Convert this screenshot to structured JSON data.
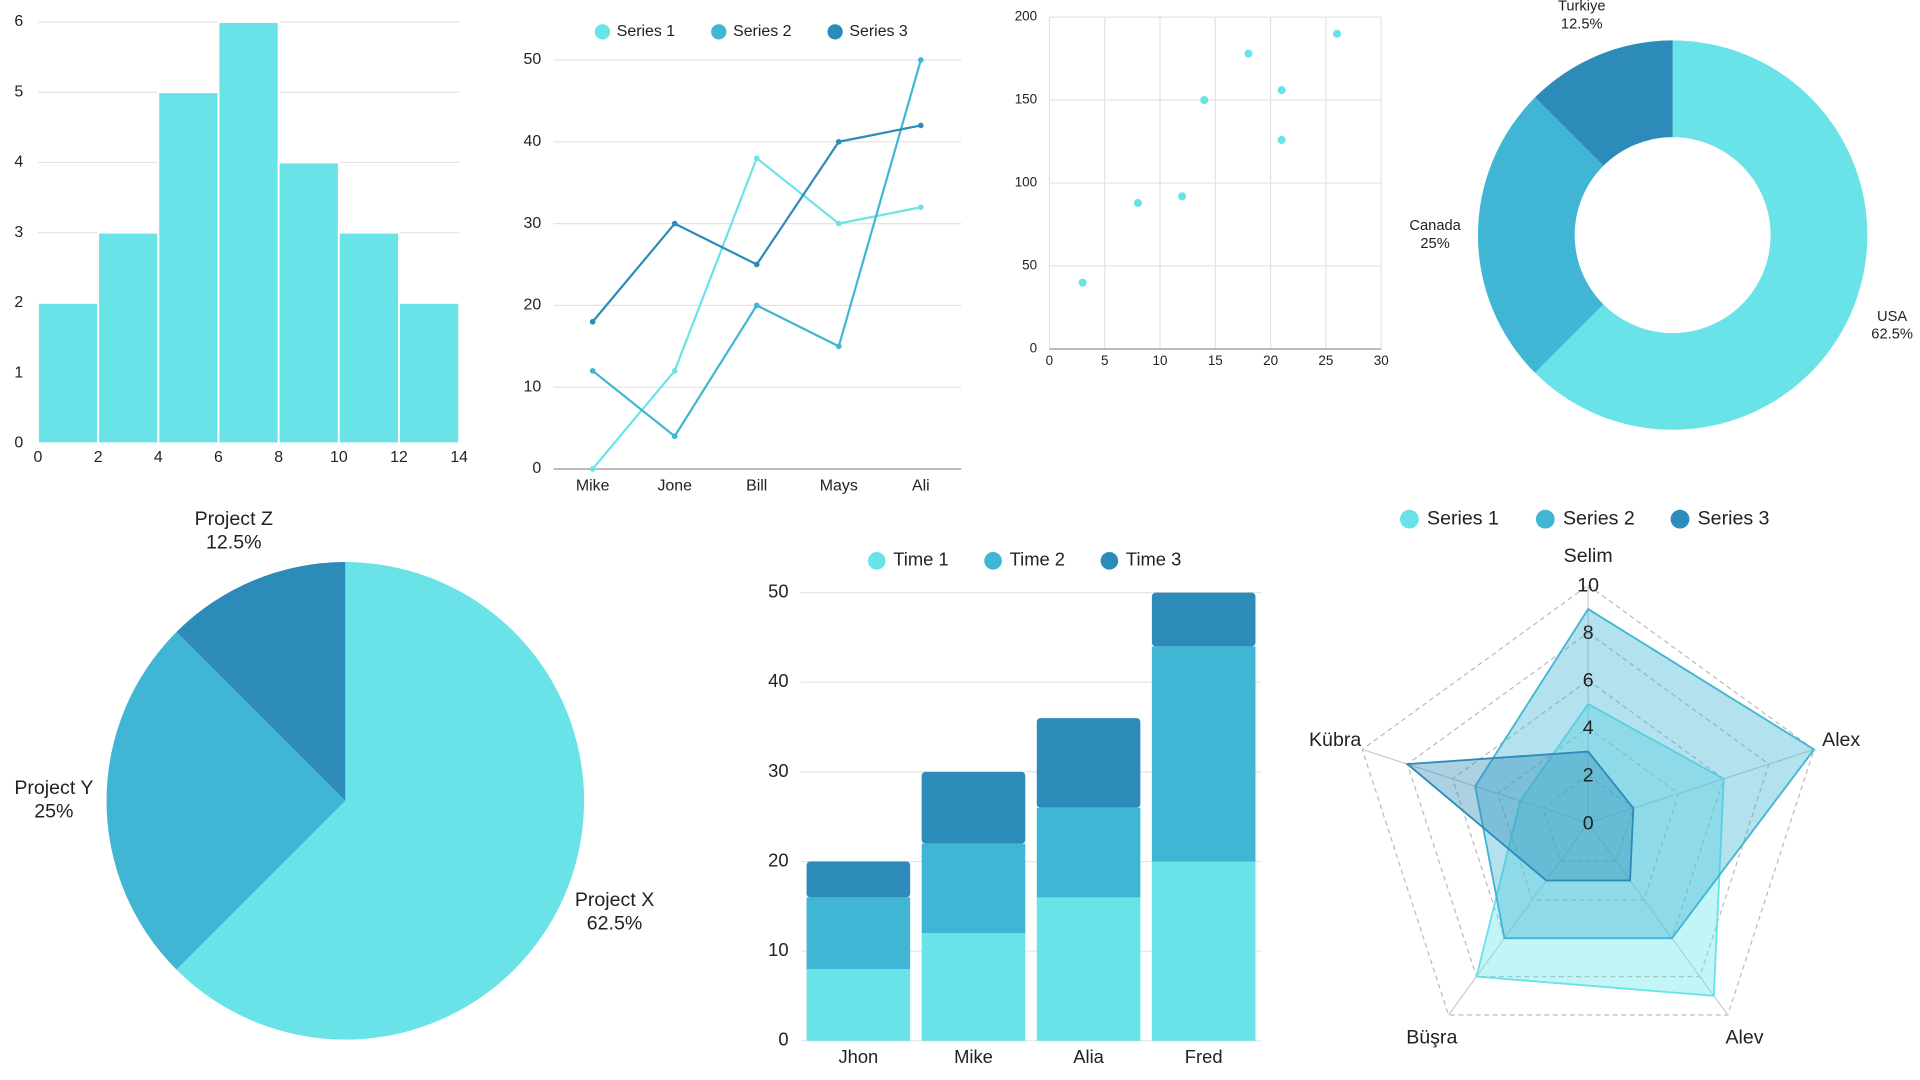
{
  "chart_data": [
    {
      "type": "histogram",
      "bins": [
        0,
        2,
        4,
        6,
        8,
        10,
        12,
        14
      ],
      "values": [
        2,
        3,
        5,
        6,
        4,
        3,
        2
      ],
      "color": "#6ae3e8",
      "xlim": [
        0,
        14
      ],
      "xticks": [
        0,
        2,
        4,
        6,
        8,
        10,
        12,
        14
      ],
      "ylim": [
        0,
        6
      ],
      "yticks": [
        0,
        1,
        2,
        3,
        4,
        5,
        6
      ],
      "grid": true
    },
    {
      "type": "line",
      "categories": [
        "Mike",
        "Jone",
        "Bill",
        "Mays",
        "Ali"
      ],
      "series": [
        {
          "name": "Series 1",
          "color": "#6ae3e8",
          "values": [
            0,
            12,
            38,
            30,
            32
          ]
        },
        {
          "name": "Series 2",
          "color": "#40b5d4",
          "values": [
            12,
            4,
            20,
            15,
            50
          ]
        },
        {
          "name": "Series 3",
          "color": "#2d8bba",
          "values": [
            18,
            30,
            25,
            40,
            42
          ]
        }
      ],
      "ylim": [
        0,
        50
      ],
      "yticks": [
        0,
        10,
        20,
        30,
        40,
        50
      ],
      "grid": true,
      "legend": "top"
    },
    {
      "type": "scatter",
      "x": [
        3,
        8,
        12,
        14,
        18,
        21,
        21,
        26
      ],
      "values": [
        40,
        88,
        92,
        150,
        178,
        156,
        126,
        190
      ],
      "color": "#6ae3e8",
      "xlim": [
        0,
        30
      ],
      "xticks": [
        0,
        5,
        10,
        15,
        20,
        25,
        30
      ],
      "ylim": [
        0,
        200
      ],
      "yticks": [
        0,
        50,
        100,
        150,
        200
      ],
      "grid": true
    },
    {
      "type": "donut",
      "categories": [
        "USA",
        "Canada",
        "Turkiye"
      ],
      "values": [
        62.5,
        25,
        12.5
      ],
      "value_labels": [
        "62.5%",
        "25%",
        "12.5%"
      ],
      "colors": [
        "#6ae3e8",
        "#40b5d4",
        "#2d8bba"
      ]
    },
    {
      "type": "pie",
      "categories": [
        "Project X",
        "Project Y",
        "Project Z"
      ],
      "values": [
        62.5,
        25,
        12.5
      ],
      "value_labels": [
        "62.5%",
        "25%",
        "12.5%"
      ],
      "colors": [
        "#6ae3e8",
        "#40b5d4",
        "#2d8bba"
      ]
    },
    {
      "type": "stacked_bar",
      "categories": [
        "Jhon",
        "Mike",
        "Alia",
        "Fred"
      ],
      "series": [
        {
          "name": "Time 1",
          "color": "#6ae3e8",
          "values": [
            8,
            12,
            16,
            20
          ]
        },
        {
          "name": "Time 2",
          "color": "#40b5d4",
          "values": [
            8,
            10,
            10,
            24
          ]
        },
        {
          "name": "Time 3",
          "color": "#2d8bba",
          "values": [
            4,
            8,
            10,
            6
          ]
        }
      ],
      "ylim": [
        0,
        50
      ],
      "yticks": [
        0,
        10,
        20,
        30,
        40,
        50
      ],
      "grid": true,
      "legend": "top"
    },
    {
      "type": "radar",
      "categories": [
        "Selim",
        "Alex",
        "Alev",
        "Büşra",
        "Kübra"
      ],
      "series": [
        {
          "name": "Series 1",
          "color": "#6ae3e8",
          "values": [
            5,
            6,
            9,
            8,
            3
          ]
        },
        {
          "name": "Series 2",
          "color": "#40b5d4",
          "values": [
            9,
            10,
            6,
            6,
            5
          ]
        },
        {
          "name": "Series 3",
          "color": "#2d8bba",
          "values": [
            3,
            2,
            3,
            3,
            8
          ]
        }
      ],
      "rlim": [
        0,
        10
      ],
      "rticks": [
        0,
        2,
        4,
        6,
        8,
        10
      ],
      "grid": true,
      "legend": "top"
    }
  ]
}
